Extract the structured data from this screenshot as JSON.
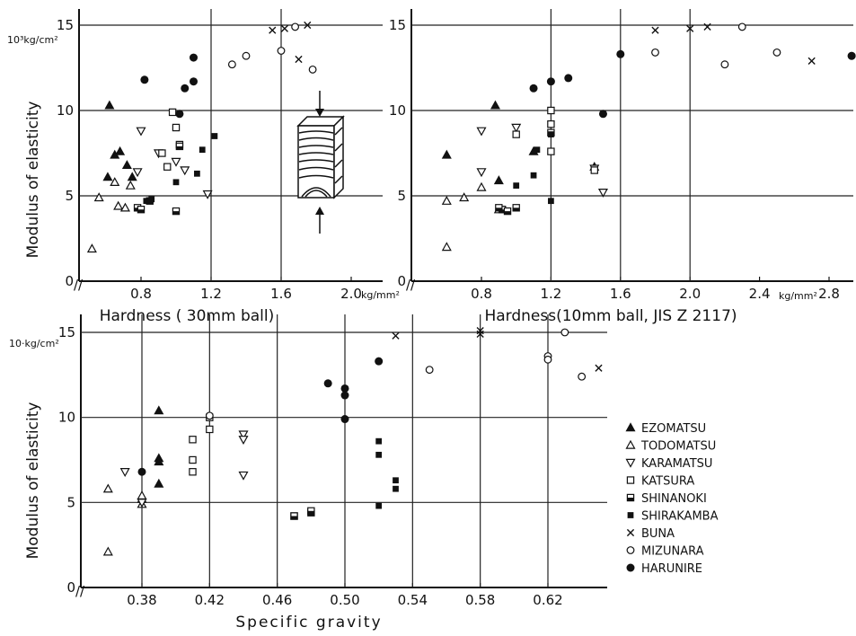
{
  "chart_data": [
    {
      "type": "scatter",
      "panel": "top-left",
      "xlabel": "Hardness ( 30mm ball)",
      "ylabel": "Modulus of elasticity",
      "unit_y": "10³kg/cm²",
      "unit_x": "kg/mm²",
      "xlim": [
        0.5,
        2.2
      ],
      "ylim": [
        0,
        16
      ],
      "x_ticks": [
        0.8,
        1.2,
        1.6,
        2.0
      ],
      "x_tick_labels": [
        "0.8",
        "1.2",
        "1.6",
        "2.0"
      ],
      "y_ticks": [
        0,
        5,
        10,
        15
      ],
      "y_tick_labels": [
        "0",
        "5",
        "10",
        "15"
      ],
      "grid": true,
      "series": [
        {
          "name": "EZOMATSU",
          "marker": "triangle-up-filled",
          "points": [
            [
              0.62,
              10.3
            ],
            [
              0.65,
              7.4
            ],
            [
              0.68,
              7.6
            ],
            [
              0.72,
              6.8
            ],
            [
              0.61,
              6.1
            ],
            [
              0.75,
              6.1
            ]
          ]
        },
        {
          "name": "TODOMATSU",
          "marker": "triangle-up-open",
          "points": [
            [
              0.52,
              1.9
            ],
            [
              0.56,
              4.9
            ],
            [
              0.65,
              5.8
            ],
            [
              0.74,
              5.6
            ],
            [
              0.67,
              4.4
            ],
            [
              0.71,
              4.3
            ]
          ]
        },
        {
          "name": "KARAMATSU",
          "marker": "triangle-down-open",
          "points": [
            [
              0.8,
              8.8
            ],
            [
              0.78,
              6.4
            ],
            [
              0.9,
              7.5
            ],
            [
              1.0,
              7.0
            ],
            [
              1.05,
              6.5
            ],
            [
              1.18,
              5.1
            ]
          ]
        },
        {
          "name": "KATSURA",
          "marker": "square-open",
          "points": [
            [
              0.98,
              9.9
            ],
            [
              1.0,
              9.0
            ],
            [
              0.95,
              6.7
            ],
            [
              0.92,
              7.5
            ],
            [
              1.02,
              8.0
            ]
          ]
        },
        {
          "name": "SHINANOKI",
          "marker": "square-half",
          "points": [
            [
              0.78,
              4.3
            ],
            [
              0.8,
              4.2
            ],
            [
              1.0,
              4.1
            ],
            [
              0.85,
              4.7
            ],
            [
              1.02,
              7.9
            ]
          ]
        },
        {
          "name": "SHIRAKAMBA",
          "marker": "square-filled",
          "points": [
            [
              0.83,
              4.7
            ],
            [
              0.86,
              4.8
            ],
            [
              1.15,
              7.7
            ],
            [
              1.22,
              8.5
            ],
            [
              1.12,
              6.3
            ],
            [
              1.0,
              5.8
            ]
          ]
        },
        {
          "name": "BUNA",
          "marker": "x",
          "points": [
            [
              1.55,
              14.7
            ],
            [
              1.62,
              14.8
            ],
            [
              1.7,
              13.0
            ],
            [
              1.75,
              15.0
            ]
          ]
        },
        {
          "name": "MIZUNARA",
          "marker": "circle-open",
          "points": [
            [
              1.32,
              12.7
            ],
            [
              1.4,
              13.2
            ],
            [
              1.6,
              13.5
            ],
            [
              1.68,
              14.9
            ],
            [
              1.78,
              12.4
            ]
          ]
        },
        {
          "name": "HARUNIRE",
          "marker": "circle-filled",
          "points": [
            [
              0.82,
              11.8
            ],
            [
              1.02,
              9.8
            ],
            [
              1.05,
              11.3
            ],
            [
              1.1,
              11.7
            ],
            [
              1.1,
              13.1
            ]
          ]
        }
      ]
    },
    {
      "type": "scatter",
      "panel": "top-right",
      "xlabel": "Hardness(10mm ball, JIS Z 2117)",
      "ylabel": "",
      "unit_x": "kg/mm²",
      "xlim": [
        0.4,
        2.96
      ],
      "ylim": [
        0,
        16
      ],
      "x_ticks": [
        0.8,
        1.2,
        1.6,
        2.0,
        2.4,
        2.8
      ],
      "x_tick_labels": [
        "0.8",
        "1.2",
        "1.6",
        "2.0",
        "2.4",
        "2.8"
      ],
      "y_ticks": [
        0,
        5,
        10,
        15
      ],
      "y_tick_labels": [
        "0",
        "5",
        "10",
        "15"
      ],
      "grid": true,
      "series": [
        {
          "name": "EZOMATSU",
          "marker": "triangle-up-filled",
          "points": [
            [
              0.6,
              7.4
            ],
            [
              0.88,
              10.3
            ],
            [
              1.1,
              7.6
            ],
            [
              1.45,
              6.7
            ],
            [
              0.9,
              5.9
            ]
          ]
        },
        {
          "name": "TODOMATSU",
          "marker": "triangle-up-open",
          "points": [
            [
              0.6,
              2.0
            ],
            [
              0.6,
              4.7
            ],
            [
              0.7,
              4.9
            ],
            [
              0.8,
              5.5
            ],
            [
              0.9,
              4.2
            ]
          ]
        },
        {
          "name": "KARAMATSU",
          "marker": "triangle-down-open",
          "points": [
            [
              0.8,
              8.8
            ],
            [
              0.8,
              6.4
            ],
            [
              1.0,
              9.0
            ],
            [
              1.45,
              6.6
            ],
            [
              1.5,
              5.2
            ]
          ]
        },
        {
          "name": "KATSURA",
          "marker": "square-open",
          "points": [
            [
              1.2,
              10.0
            ],
            [
              1.2,
              9.2
            ],
            [
              1.2,
              7.6
            ],
            [
              1.45,
              6.5
            ],
            [
              1.0,
              8.6
            ]
          ]
        },
        {
          "name": "SHINANOKI",
          "marker": "square-half",
          "points": [
            [
              0.92,
              4.2
            ],
            [
              0.95,
              4.1
            ],
            [
              1.0,
              4.3
            ],
            [
              0.9,
              4.3
            ],
            [
              1.2,
              8.7
            ]
          ]
        },
        {
          "name": "SHIRAKAMBA",
          "marker": "square-filled",
          "points": [
            [
              1.0,
              5.6
            ],
            [
              1.1,
              6.2
            ],
            [
              1.12,
              7.7
            ],
            [
              1.2,
              4.7
            ],
            [
              1.2,
              8.6
            ]
          ]
        },
        {
          "name": "BUNA",
          "marker": "x",
          "points": [
            [
              1.8,
              14.7
            ],
            [
              2.0,
              14.8
            ],
            [
              2.1,
              14.9
            ],
            [
              2.7,
              12.9
            ]
          ]
        },
        {
          "name": "MIZUNARA",
          "marker": "circle-open",
          "points": [
            [
              1.8,
              13.4
            ],
            [
              2.2,
              12.7
            ],
            [
              2.3,
              14.9
            ],
            [
              2.5,
              13.4
            ],
            [
              2.93,
              13.2
            ]
          ]
        },
        {
          "name": "HARUNIRE",
          "marker": "circle-filled",
          "points": [
            [
              1.1,
              11.3
            ],
            [
              1.2,
              11.7
            ],
            [
              1.3,
              11.9
            ],
            [
              1.5,
              9.8
            ],
            [
              1.6,
              13.3
            ],
            [
              2.93,
              13.2
            ]
          ]
        }
      ]
    },
    {
      "type": "scatter",
      "panel": "bottom-left",
      "xlabel": "Specific gravity",
      "ylabel": "Modulus of elasticity",
      "unit_y": "10·kg/cm²",
      "xlim": [
        0.347,
        0.65
      ],
      "ylim": [
        0,
        16
      ],
      "x_ticks": [
        0.38,
        0.42,
        0.46,
        0.5,
        0.54,
        0.58,
        0.62
      ],
      "x_tick_labels": [
        "0.38",
        "0.42",
        "0.46",
        "0.50",
        "0.54",
        "0.58",
        "0.62"
      ],
      "y_ticks": [
        0,
        5,
        10,
        15
      ],
      "y_tick_labels": [
        "0",
        "5",
        "10",
        "15"
      ],
      "grid": true,
      "series": [
        {
          "name": "EZOMATSU",
          "marker": "triangle-up-filled",
          "points": [
            [
              0.39,
              10.4
            ],
            [
              0.39,
              7.6
            ],
            [
              0.39,
              7.4
            ],
            [
              0.39,
              6.1
            ],
            [
              0.38,
              5.2
            ]
          ]
        },
        {
          "name": "TODOMATSU",
          "marker": "triangle-up-open",
          "points": [
            [
              0.36,
              2.1
            ],
            [
              0.36,
              5.8
            ],
            [
              0.38,
              5.4
            ],
            [
              0.38,
              4.9
            ]
          ]
        },
        {
          "name": "KARAMATSU",
          "marker": "triangle-down-open",
          "points": [
            [
              0.37,
              6.8
            ],
            [
              0.38,
              5.0
            ],
            [
              0.44,
              9.0
            ],
            [
              0.44,
              8.7
            ],
            [
              0.44,
              6.6
            ]
          ]
        },
        {
          "name": "KATSURA",
          "marker": "square-open",
          "points": [
            [
              0.41,
              8.7
            ],
            [
              0.41,
              7.5
            ],
            [
              0.41,
              6.8
            ],
            [
              0.42,
              9.3
            ],
            [
              0.42,
              10.0
            ]
          ]
        },
        {
          "name": "SHINANOKI",
          "marker": "square-half",
          "points": [
            [
              0.47,
              4.2
            ],
            [
              0.47,
              4.2
            ],
            [
              0.48,
              4.4
            ],
            [
              0.48,
              4.5
            ]
          ]
        },
        {
          "name": "SHIRAKAMBA",
          "marker": "square-filled",
          "points": [
            [
              0.52,
              8.6
            ],
            [
              0.52,
              7.8
            ],
            [
              0.53,
              6.3
            ],
            [
              0.53,
              5.8
            ],
            [
              0.52,
              4.8
            ]
          ]
        },
        {
          "name": "BUNA",
          "marker": "x",
          "points": [
            [
              0.53,
              14.8
            ],
            [
              0.58,
              14.9
            ],
            [
              0.58,
              15.1
            ],
            [
              0.65,
              12.9
            ]
          ]
        },
        {
          "name": "MIZUNARA",
          "marker": "circle-open",
          "points": [
            [
              0.55,
              12.8
            ],
            [
              0.62,
              13.6
            ],
            [
              0.62,
              13.4
            ],
            [
              0.63,
              15.0
            ],
            [
              0.64,
              12.4
            ],
            [
              0.42,
              10.1
            ]
          ]
        },
        {
          "name": "HARUNIRE",
          "marker": "circle-filled",
          "points": [
            [
              0.38,
              6.8
            ],
            [
              0.49,
              12.0
            ],
            [
              0.5,
              11.7
            ],
            [
              0.5,
              11.3
            ],
            [
              0.5,
              9.9
            ],
            [
              0.52,
              13.3
            ]
          ]
        }
      ]
    }
  ],
  "legend": {
    "placement": "right of bottom panel",
    "items": [
      {
        "label": "EZOMATSU",
        "marker": "triangle-up-filled"
      },
      {
        "label": "TODOMATSU",
        "marker": "triangle-up-open"
      },
      {
        "label": "KARAMATSU",
        "marker": "triangle-down-open"
      },
      {
        "label": "KATSURA",
        "marker": "square-open"
      },
      {
        "label": "SHINANOKI",
        "marker": "square-half"
      },
      {
        "label": "SHIRAKAMBA",
        "marker": "square-filled"
      },
      {
        "label": "BUNA",
        "marker": "x"
      },
      {
        "label": "MIZUNARA",
        "marker": "circle-open"
      },
      {
        "label": "HARUNIRE",
        "marker": "circle-filled"
      }
    ]
  },
  "labels": {
    "top_left_unit_y": "10³kg/cm²",
    "top_left_unit_x": "kg/mm²",
    "top_right_unit_x": "kg/mm²",
    "bottom_unit_y": "10·kg/cm²",
    "axis_break": "//"
  },
  "colors": {
    "ink": "#111111",
    "grid": "#222222",
    "background": "#ffffff"
  },
  "icons": {
    "wood_specimen": "wood-block-with-arrows-icon"
  }
}
